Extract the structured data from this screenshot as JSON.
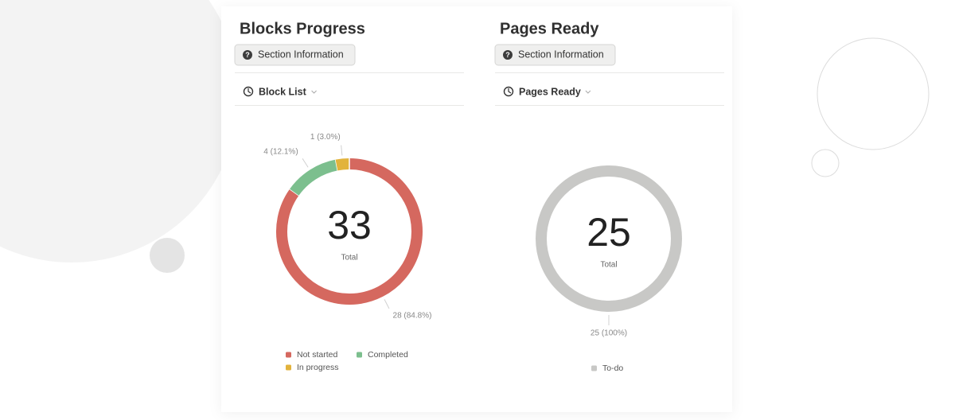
{
  "chart_data": [
    {
      "type": "donut",
      "title": "Blocks Progress",
      "categories": [
        "Not started",
        "Completed",
        "In progress"
      ],
      "values": [
        28,
        4,
        1
      ],
      "value_labels": [
        "28 (84.8%)",
        "4 (12.1%)",
        "1 (3.0%)"
      ],
      "colors": [
        "#d5685f",
        "#7cbf8e",
        "#e2b33c"
      ],
      "total": 33,
      "total_label": "Total"
    },
    {
      "type": "donut",
      "title": "Pages Ready",
      "categories": [
        "To-do"
      ],
      "values": [
        25
      ],
      "value_labels": [
        "25 (100%)"
      ],
      "colors": [
        "#c8c8c6"
      ],
      "total": 25,
      "total_label": "Total"
    }
  ],
  "panels": [
    {
      "button": "Section Information",
      "view": "Block List"
    },
    {
      "button": "Section Information",
      "view": "Pages Ready"
    }
  ]
}
